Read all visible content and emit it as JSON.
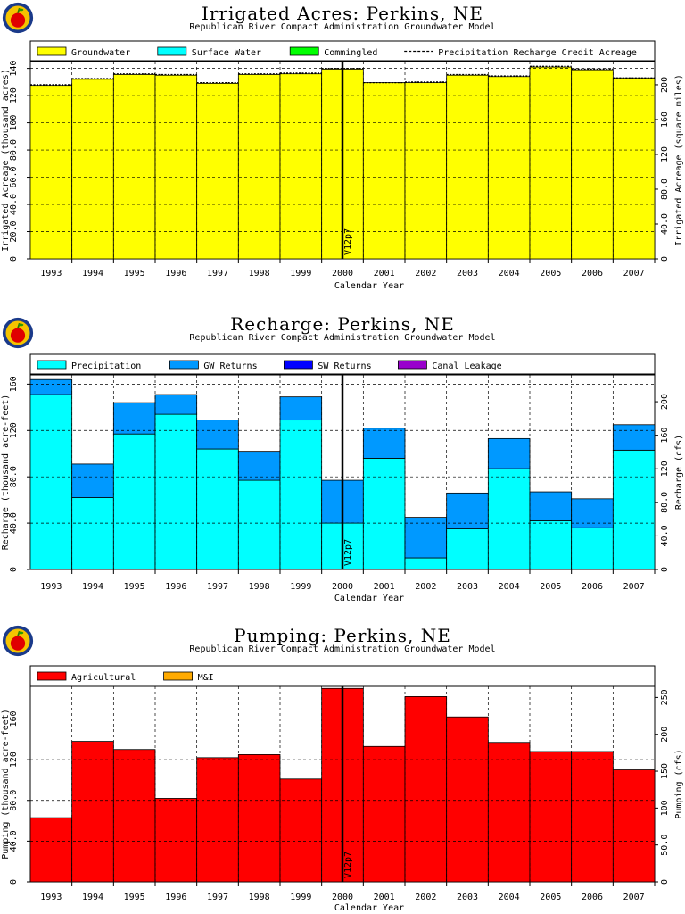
{
  "chart_data": [
    {
      "type": "bar",
      "title": "Irrigated Acres: Perkins, NE",
      "subtitle": "Republican River Compact Administration Groundwater Model",
      "xlabel": "Calendar Year",
      "ylabel": "Irrigated Acreage (thousand acres)",
      "y2label": "Irrigated Acreage (square miles)",
      "categories": [
        "1993",
        "1994",
        "1995",
        "1996",
        "1997",
        "1998",
        "1999",
        "2000",
        "2001",
        "2002",
        "2003",
        "2004",
        "2005",
        "2006",
        "2007"
      ],
      "ylim": [
        0,
        145
      ],
      "yticks": [
        "0",
        "20.0",
        "40.0",
        "60.0",
        "80.0",
        "100",
        "120",
        "140"
      ],
      "y2lim": [
        0,
        226.6
      ],
      "y2ticks": [
        "0",
        "40.0",
        "80.0",
        "120",
        "160",
        "200"
      ],
      "series": [
        {
          "name": "Groundwater",
          "color": "#ffff00",
          "values": [
            127.5,
            132,
            135.5,
            135,
            129,
            135.5,
            136,
            139.5,
            129.5,
            129.5,
            135,
            134,
            141,
            139,
            133
          ]
        },
        {
          "name": "Surface Water",
          "color": "#00ffff",
          "values": [
            0,
            0,
            0,
            0,
            0,
            0,
            0,
            0,
            0,
            0,
            0,
            0,
            0,
            0,
            0
          ]
        },
        {
          "name": "Commingled",
          "color": "#00ff00",
          "values": [
            0,
            0,
            0,
            0,
            0,
            0,
            0,
            0,
            0,
            0,
            0,
            0,
            0,
            0,
            0
          ]
        }
      ],
      "line_series": {
        "name": "Precipitation Recharge Credit Acreage",
        "values": [
          128,
          132.5,
          136,
          135.5,
          129.5,
          136,
          136.5,
          140,
          129.5,
          130,
          135.5,
          134.5,
          141.5,
          139.5,
          133
        ]
      },
      "marker": {
        "label": "V12p7"
      }
    },
    {
      "type": "bar",
      "title": "Recharge: Perkins, NE",
      "subtitle": "Republican River Compact Administration Groundwater Model",
      "xlabel": "Calendar Year",
      "ylabel": "Recharge (thousand acre-feet)",
      "y2label": "Recharge (cfs)",
      "categories": [
        "1993",
        "1994",
        "1995",
        "1996",
        "1997",
        "1998",
        "1999",
        "2000",
        "2001",
        "2002",
        "2003",
        "2004",
        "2005",
        "2006",
        "2007"
      ],
      "ylim": [
        0,
        168
      ],
      "yticks": [
        "0",
        "40.0",
        "80.0",
        "120",
        "160"
      ],
      "y2lim": [
        0,
        232
      ],
      "y2ticks": [
        "0",
        "40.0",
        "80.0",
        "120",
        "160",
        "200"
      ],
      "series": [
        {
          "name": "Precipitation",
          "color": "#00ffff",
          "values": [
            151,
            62,
            117,
            134,
            104,
            77,
            129,
            40,
            96,
            10,
            35,
            87,
            42,
            36,
            103
          ]
        },
        {
          "name": "GW Returns",
          "color": "#0099ff",
          "values": [
            13,
            29,
            27,
            17,
            25,
            25,
            20,
            37,
            26,
            35,
            31,
            26,
            25,
            25,
            22
          ]
        },
        {
          "name": "SW Returns",
          "color": "#0000ff",
          "values": [
            0,
            0,
            0,
            0,
            0,
            0,
            0,
            0,
            0,
            0,
            0,
            0,
            0,
            0,
            0
          ]
        },
        {
          "name": "Canal Leakage",
          "color": "#9900cc",
          "values": [
            0,
            0,
            0,
            0,
            0,
            0,
            0,
            0,
            0,
            0,
            0,
            0,
            0,
            0,
            0
          ]
        }
      ],
      "marker": {
        "label": "V12p7"
      }
    },
    {
      "type": "bar",
      "title": "Pumping: Perkins, NE",
      "subtitle": "Republican River Compact Administration Groundwater Model",
      "xlabel": "Calendar Year",
      "ylabel": "Pumping (thousand acre-feet)",
      "y2label": "Pumping (cfs)",
      "categories": [
        "1993",
        "1994",
        "1995",
        "1996",
        "1997",
        "1998",
        "1999",
        "2000",
        "2001",
        "2002",
        "2003",
        "2004",
        "2005",
        "2006",
        "2007"
      ],
      "ylim": [
        0,
        192
      ],
      "yticks": [
        "0",
        "40.0",
        "80.0",
        "120",
        "160"
      ],
      "y2lim": [
        0,
        265
      ],
      "y2ticks": [
        "0",
        "50.0",
        "100",
        "150",
        "200",
        "250"
      ],
      "series": [
        {
          "name": "Agricultural",
          "color": "#ff0000",
          "values": [
            63,
            138,
            130,
            82,
            122,
            125,
            101,
            190,
            133,
            182,
            162,
            137,
            128,
            128,
            110
          ]
        },
        {
          "name": "M&I",
          "color": "#ffaa00",
          "values": [
            0,
            0,
            0,
            0,
            0,
            0,
            0,
            0,
            0,
            0,
            0,
            0,
            0,
            0,
            0
          ]
        }
      ],
      "marker": {
        "label": "V12p7"
      }
    }
  ]
}
